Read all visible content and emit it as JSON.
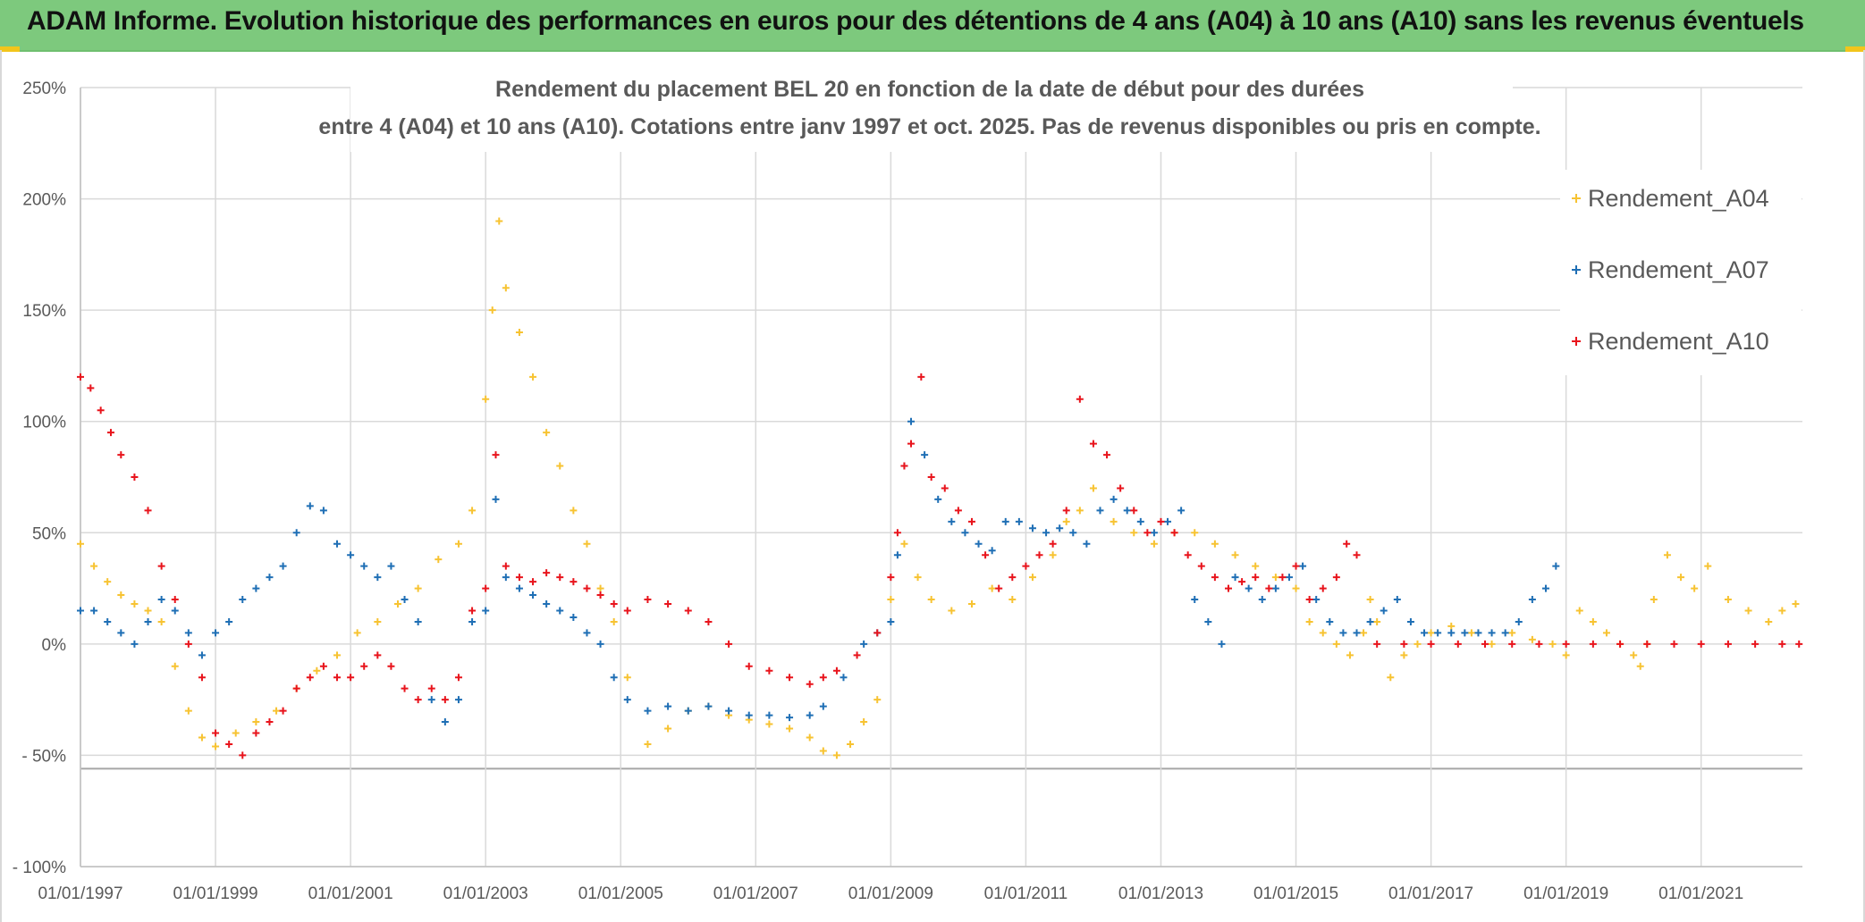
{
  "banner": {
    "title": "ADAM Informe. Evolution historique des performances en euros pour des détentions de 4 ans (A04) à 10 ans (A10) sans les revenus éventuels"
  },
  "colors": {
    "banner": "#7dc97d",
    "A04": "#f7c332",
    "A07": "#1f6fb5",
    "A10": "#e8141c",
    "grid": "#d9d9d9",
    "text": "#595959"
  },
  "chart_data": {
    "type": "scatter",
    "title_line1": "Rendement du placement BEL 20 en fonction de la date de début pour des durées",
    "title_line2": "entre 4 (A04) et 10 ans (A10). Cotations entre janv 1997 et oct. 2025. Pas de revenus disponibles ou pris en compte.",
    "xlabel": "",
    "ylabel": "",
    "x_range": [
      1997.0,
      2022.5
    ],
    "ylim": [
      -100,
      250
    ],
    "y_ticks": [
      250,
      200,
      150,
      100,
      50,
      0,
      -50,
      -100
    ],
    "y_tick_labels": [
      "250%",
      "200%",
      "150%",
      "100%",
      "50%",
      "0%",
      "- 50%",
      "- 100%"
    ],
    "x_ticks": [
      1997,
      1999,
      2001,
      2003,
      2005,
      2007,
      2009,
      2011,
      2013,
      2015,
      2017,
      2019,
      2021
    ],
    "x_tick_labels": [
      "01/01/1997",
      "01/01/1999",
      "01/01/2001",
      "01/01/2003",
      "01/01/2005",
      "01/01/2007",
      "01/01/2009",
      "01/01/2011",
      "01/01/2013",
      "01/01/2015",
      "01/01/2017",
      "01/01/2019",
      "01/01/2021"
    ],
    "legend_position": "right",
    "series": [
      {
        "name": "Rendement_A04",
        "x": [
          1997.0,
          1997.2,
          1997.4,
          1997.6,
          1997.8,
          1998.0,
          1998.2,
          1998.4,
          1998.6,
          1998.8,
          1999.0,
          1999.3,
          1999.6,
          1999.9,
          2000.2,
          2000.5,
          2000.8,
          2001.1,
          2001.4,
          2001.7,
          2002.0,
          2002.3,
          2002.6,
          2002.8,
          2003.0,
          2003.1,
          2003.2,
          2003.3,
          2003.5,
          2003.7,
          2003.9,
          2004.1,
          2004.3,
          2004.5,
          2004.7,
          2004.9,
          2005.1,
          2005.4,
          2005.7,
          2006.0,
          2006.3,
          2006.6,
          2006.9,
          2007.2,
          2007.5,
          2007.8,
          2008.0,
          2008.2,
          2008.4,
          2008.6,
          2008.8,
          2009.0,
          2009.2,
          2009.4,
          2009.6,
          2009.9,
          2010.2,
          2010.5,
          2010.8,
          2011.1,
          2011.4,
          2011.6,
          2011.8,
          2012.0,
          2012.3,
          2012.6,
          2012.9,
          2013.2,
          2013.5,
          2013.8,
          2014.1,
          2014.4,
          2014.7,
          2015.0,
          2015.2,
          2015.4,
          2015.6,
          2015.8,
          2016.0,
          2016.1,
          2016.2,
          2016.4,
          2016.6,
          2016.8,
          2017.0,
          2017.3,
          2017.6,
          2017.9,
          2018.2,
          2018.5,
          2018.8,
          2019.0,
          2019.2,
          2019.4,
          2019.6,
          2019.8,
          2020.0,
          2020.1,
          2020.2,
          2020.3,
          2020.5,
          2020.7,
          2020.9,
          2021.1,
          2021.4,
          2021.7,
          2022.0,
          2022.2,
          2022.4
        ],
        "y": [
          45,
          35,
          28,
          22,
          18,
          15,
          10,
          -10,
          -30,
          -42,
          -46,
          -40,
          -35,
          -30,
          -20,
          -12,
          -5,
          5,
          10,
          18,
          25,
          38,
          45,
          60,
          110,
          150,
          190,
          160,
          140,
          120,
          95,
          80,
          60,
          45,
          25,
          10,
          -15,
          -45,
          -38,
          -30,
          -28,
          -32,
          -34,
          -36,
          -38,
          -42,
          -48,
          -50,
          -45,
          -35,
          -25,
          20,
          45,
          30,
          20,
          15,
          18,
          25,
          20,
          30,
          40,
          55,
          60,
          70,
          55,
          50,
          45,
          50,
          50,
          45,
          40,
          35,
          30,
          25,
          10,
          5,
          0,
          -5,
          5,
          20,
          10,
          -15,
          -5,
          0,
          5,
          8,
          5,
          0,
          5,
          2,
          0,
          -5,
          15,
          10,
          5,
          0,
          -5,
          -10,
          0,
          20,
          40,
          30,
          25,
          35,
          20,
          15,
          10,
          15,
          18
        ]
      },
      {
        "name": "Rendement_A07",
        "x": [
          1997.0,
          1997.2,
          1997.4,
          1997.6,
          1997.8,
          1998.0,
          1998.2,
          1998.4,
          1998.6,
          1998.8,
          1999.0,
          1999.2,
          1999.4,
          1999.6,
          1999.8,
          2000.0,
          2000.2,
          2000.4,
          2000.6,
          2000.8,
          2001.0,
          2001.2,
          2001.4,
          2001.6,
          2001.8,
          2002.0,
          2002.2,
          2002.4,
          2002.6,
          2002.8,
          2003.0,
          2003.15,
          2003.3,
          2003.5,
          2003.7,
          2003.9,
          2004.1,
          2004.3,
          2004.5,
          2004.7,
          2004.9,
          2005.1,
          2005.4,
          2005.7,
          2006.0,
          2006.3,
          2006.6,
          2006.9,
          2007.2,
          2007.5,
          2007.8,
          2008.0,
          2008.3,
          2008.6,
          2008.8,
          2009.0,
          2009.1,
          2009.2,
          2009.3,
          2009.5,
          2009.7,
          2009.9,
          2010.1,
          2010.3,
          2010.5,
          2010.7,
          2010.9,
          2011.1,
          2011.3,
          2011.5,
          2011.7,
          2011.9,
          2012.1,
          2012.3,
          2012.5,
          2012.7,
          2012.9,
          2013.1,
          2013.3,
          2013.5,
          2013.7,
          2013.9,
          2014.1,
          2014.3,
          2014.5,
          2014.7,
          2014.9,
          2015.1,
          2015.3,
          2015.5,
          2015.7,
          2015.9,
          2016.1,
          2016.3,
          2016.5,
          2016.7,
          2016.9,
          2017.1,
          2017.3,
          2017.5,
          2017.7,
          2017.9,
          2018.1,
          2018.3,
          2018.5,
          2018.7,
          2018.85
        ],
        "y": [
          15,
          15,
          10,
          5,
          0,
          10,
          20,
          15,
          5,
          -5,
          5,
          10,
          20,
          25,
          30,
          35,
          50,
          62,
          60,
          45,
          40,
          35,
          30,
          35,
          20,
          10,
          -25,
          -35,
          -25,
          10,
          15,
          65,
          30,
          25,
          22,
          18,
          15,
          12,
          5,
          0,
          -15,
          -25,
          -30,
          -28,
          -30,
          -28,
          -30,
          -32,
          -32,
          -33,
          -32,
          -28,
          -15,
          0,
          5,
          10,
          40,
          80,
          100,
          85,
          65,
          55,
          50,
          45,
          42,
          55,
          55,
          52,
          50,
          52,
          50,
          45,
          60,
          65,
          60,
          55,
          50,
          55,
          60,
          20,
          10,
          0,
          30,
          25,
          20,
          25,
          30,
          35,
          20,
          10,
          5,
          5,
          10,
          15,
          20,
          10,
          5,
          5,
          5,
          5,
          5,
          5,
          5,
          10,
          20,
          25,
          35
        ]
      },
      {
        "name": "Rendement_A10",
        "x": [
          1997.0,
          1997.15,
          1997.3,
          1997.45,
          1997.6,
          1997.8,
          1998.0,
          1998.2,
          1998.4,
          1998.6,
          1998.8,
          1999.0,
          1999.2,
          1999.4,
          1999.6,
          1999.8,
          2000.0,
          2000.2,
          2000.4,
          2000.6,
          2000.8,
          2001.0,
          2001.2,
          2001.4,
          2001.6,
          2001.8,
          2002.0,
          2002.2,
          2002.4,
          2002.6,
          2002.8,
          2003.0,
          2003.15,
          2003.3,
          2003.5,
          2003.7,
          2003.9,
          2004.1,
          2004.3,
          2004.5,
          2004.7,
          2004.9,
          2005.1,
          2005.4,
          2005.7,
          2006.0,
          2006.3,
          2006.6,
          2006.9,
          2007.2,
          2007.5,
          2007.8,
          2008.0,
          2008.2,
          2008.5,
          2008.8,
          2009.0,
          2009.1,
          2009.2,
          2009.3,
          2009.45,
          2009.6,
          2009.8,
          2010.0,
          2010.2,
          2010.4,
          2010.6,
          2010.8,
          2011.0,
          2011.2,
          2011.4,
          2011.6,
          2011.8,
          2012.0,
          2012.2,
          2012.4,
          2012.6,
          2012.8,
          2013.0,
          2013.2,
          2013.4,
          2013.6,
          2013.8,
          2014.0,
          2014.2,
          2014.4,
          2014.6,
          2014.8,
          2015.0,
          2015.2,
          2015.4,
          2015.6,
          2015.75,
          2015.9,
          2016.2,
          2016.6,
          2017.0,
          2017.4,
          2017.8,
          2018.2,
          2018.6,
          2019.0,
          2019.4,
          2019.8,
          2020.2,
          2020.6,
          2021.0,
          2021.4,
          2021.8,
          2022.2,
          2022.45
        ],
        "y": [
          120,
          115,
          105,
          95,
          85,
          75,
          60,
          35,
          20,
          0,
          -15,
          -40,
          -45,
          -50,
          -40,
          -35,
          -30,
          -20,
          -15,
          -10,
          -15,
          -15,
          -10,
          -5,
          -10,
          -20,
          -25,
          -20,
          -25,
          -15,
          15,
          25,
          85,
          35,
          30,
          28,
          32,
          30,
          28,
          25,
          22,
          18,
          15,
          20,
          18,
          15,
          10,
          0,
          -10,
          -12,
          -15,
          -18,
          -15,
          -12,
          -5,
          5,
          30,
          50,
          80,
          90,
          120,
          75,
          70,
          60,
          55,
          40,
          25,
          30,
          35,
          40,
          45,
          60,
          110,
          90,
          85,
          70,
          60,
          50,
          55,
          50,
          40,
          35,
          30,
          25,
          28,
          30,
          25,
          30,
          35,
          20,
          25,
          30,
          45,
          40,
          0,
          0,
          0,
          0,
          0,
          0,
          0,
          0,
          0,
          0,
          0,
          0,
          0,
          0,
          0,
          0,
          0
        ]
      }
    ]
  }
}
